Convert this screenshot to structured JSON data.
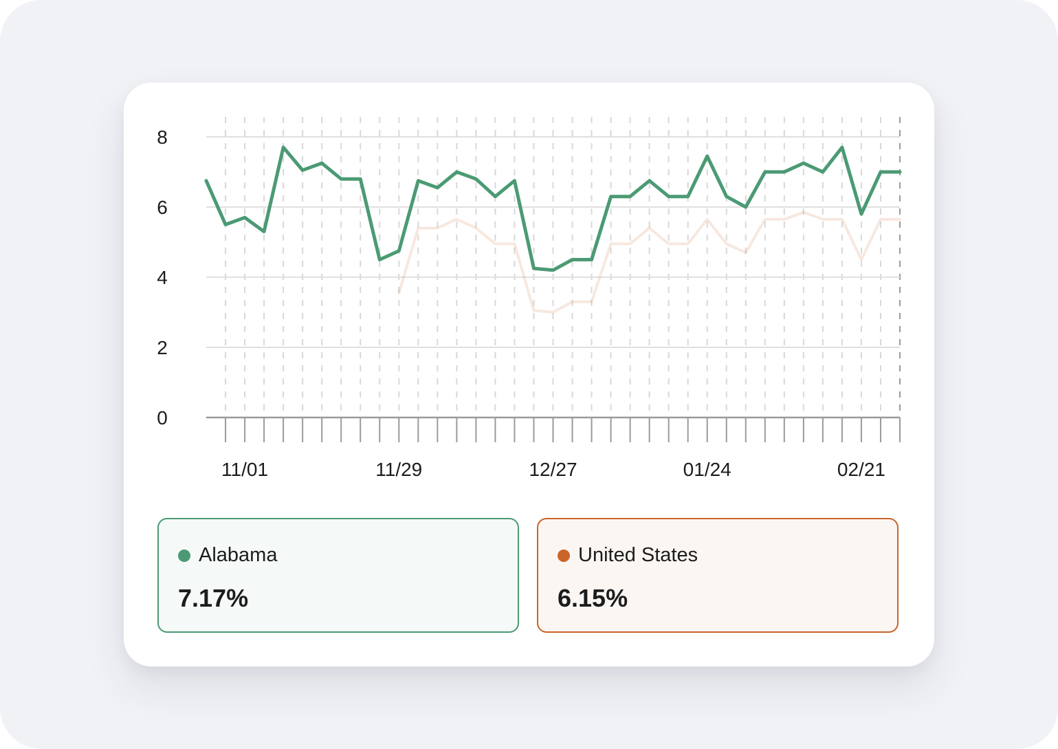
{
  "chart_data": {
    "type": "line",
    "title": "",
    "xlabel": "",
    "ylabel": "",
    "ylim": [
      0,
      8
    ],
    "yticks": [
      "0",
      "2",
      "4",
      "6",
      "8"
    ],
    "xtick_labels": [
      {
        "index": 2,
        "label": "11/01"
      },
      {
        "index": 10,
        "label": "11/29"
      },
      {
        "index": 18,
        "label": "12/27"
      },
      {
        "index": 26,
        "label": "01/24"
      },
      {
        "index": 34,
        "label": "02/21"
      }
    ],
    "n_points": 37,
    "grid": true,
    "series": [
      {
        "name": "Alabama",
        "color": "#4b9a74",
        "values": [
          6.75,
          5.5,
          5.7,
          5.3,
          7.7,
          7.05,
          7.25,
          6.8,
          6.8,
          4.5,
          4.75,
          6.75,
          6.55,
          7.0,
          6.8,
          6.3,
          6.75,
          4.25,
          4.2,
          4.5,
          4.5,
          6.3,
          6.3,
          6.75,
          6.3,
          6.3,
          7.45,
          6.3,
          6.0,
          7.0,
          7.0,
          7.25,
          7.0,
          7.7,
          5.8,
          7.0,
          7.0
        ]
      },
      {
        "name": "United States",
        "color": "#c9642a",
        "values": [
          null,
          null,
          null,
          null,
          null,
          null,
          null,
          null,
          null,
          null,
          3.55,
          5.4,
          5.4,
          5.65,
          5.4,
          4.95,
          4.95,
          3.05,
          3.0,
          3.3,
          3.3,
          4.95,
          4.95,
          5.4,
          4.95,
          4.95,
          5.65,
          4.95,
          4.7,
          5.65,
          5.65,
          5.85,
          5.65,
          5.65,
          4.5,
          5.65,
          5.65
        ]
      }
    ]
  },
  "legend": {
    "alabama": {
      "name": "Alabama",
      "value": "7.17%",
      "color": "#4b9a74"
    },
    "us": {
      "name": "United States",
      "value": "6.15%",
      "color": "#c9642a"
    }
  }
}
